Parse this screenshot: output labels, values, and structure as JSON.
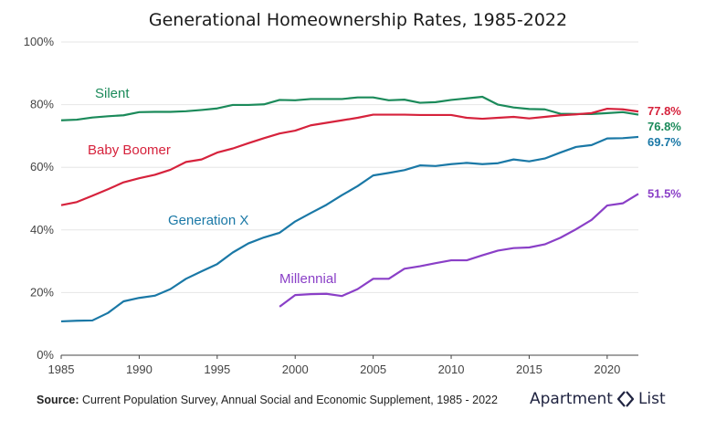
{
  "chart_data": {
    "type": "line",
    "title": "Generational Homeownership Rates, 1985-2022",
    "xlabel": "",
    "ylabel": "",
    "xlim": [
      1985,
      2022
    ],
    "ylim": [
      0,
      100
    ],
    "x_ticks": [
      1985,
      1990,
      1995,
      2000,
      2005,
      2010,
      2015,
      2020
    ],
    "x_tick_labels": [
      "1985",
      "1990",
      "1995",
      "2000",
      "2005",
      "2010",
      "2015",
      "2020"
    ],
    "y_ticks": [
      0,
      20,
      40,
      60,
      80,
      100
    ],
    "y_tick_labels": [
      "0%",
      "20%",
      "40%",
      "60%",
      "80%",
      "100%"
    ],
    "grid": "horizontal",
    "series": [
      {
        "name": "Silent",
        "color": "#1b8a5a",
        "end_label": "76.8%",
        "x": [
          1985,
          1986,
          1987,
          1988,
          1989,
          1990,
          1991,
          1992,
          1993,
          1994,
          1995,
          1996,
          1997,
          1998,
          1999,
          2000,
          2001,
          2002,
          2003,
          2004,
          2005,
          2006,
          2007,
          2008,
          2009,
          2010,
          2011,
          2012,
          2013,
          2014,
          2015,
          2016,
          2017,
          2018,
          2019,
          2020,
          2021,
          2022
        ],
        "values": [
          75.0,
          75.2,
          75.9,
          76.3,
          76.6,
          77.6,
          77.7,
          77.7,
          77.9,
          78.3,
          78.8,
          79.9,
          79.9,
          80.1,
          81.5,
          81.4,
          81.8,
          81.8,
          81.8,
          82.3,
          82.3,
          81.4,
          81.6,
          80.6,
          80.8,
          81.5,
          82.0,
          82.5,
          80.0,
          79.1,
          78.6,
          78.5,
          77.1,
          77.0,
          77.0,
          77.3,
          77.6,
          76.8
        ]
      },
      {
        "name": "Baby Boomer",
        "color": "#d6223c",
        "end_label": "77.8%",
        "x": [
          1985,
          1986,
          1987,
          1988,
          1989,
          1990,
          1991,
          1992,
          1993,
          1994,
          1995,
          1996,
          1997,
          1998,
          1999,
          2000,
          2001,
          2002,
          2003,
          2004,
          2005,
          2006,
          2007,
          2008,
          2009,
          2010,
          2011,
          2012,
          2013,
          2014,
          2015,
          2016,
          2017,
          2018,
          2019,
          2020,
          2021,
          2022
        ],
        "values": [
          47.9,
          48.9,
          50.9,
          53.0,
          55.2,
          56.5,
          57.6,
          59.2,
          61.7,
          62.5,
          64.7,
          66.0,
          67.7,
          69.3,
          70.8,
          71.7,
          73.4,
          74.2,
          75.0,
          75.8,
          76.8,
          76.8,
          76.8,
          76.7,
          76.7,
          76.7,
          75.8,
          75.5,
          75.8,
          76.1,
          75.6,
          76.1,
          76.6,
          76.9,
          77.3,
          78.7,
          78.5,
          77.8
        ]
      },
      {
        "name": "Generation X",
        "color": "#1a78a6",
        "end_label": "69.7%",
        "x": [
          1985,
          1986,
          1987,
          1988,
          1989,
          1990,
          1991,
          1992,
          1993,
          1994,
          1995,
          1996,
          1997,
          1998,
          1999,
          2000,
          2001,
          2002,
          2003,
          2004,
          2005,
          2006,
          2007,
          2008,
          2009,
          2010,
          2011,
          2012,
          2013,
          2014,
          2015,
          2016,
          2017,
          2018,
          2019,
          2020,
          2021,
          2022
        ],
        "values": [
          10.8,
          11.0,
          11.1,
          13.5,
          17.2,
          18.3,
          19.0,
          21.1,
          24.4,
          26.8,
          29.1,
          32.8,
          35.7,
          37.6,
          39.1,
          42.7,
          45.4,
          48.0,
          51.1,
          54.0,
          57.4,
          58.2,
          59.1,
          60.6,
          60.4,
          61.0,
          61.4,
          61.0,
          61.3,
          62.5,
          61.9,
          62.8,
          64.7,
          66.5,
          67.1,
          69.2,
          69.3,
          69.7
        ]
      },
      {
        "name": "Millennial",
        "color": "#8a3fc7",
        "end_label": "51.5%",
        "x": [
          1999,
          2000,
          2001,
          2002,
          2003,
          2004,
          2005,
          2006,
          2007,
          2008,
          2009,
          2010,
          2011,
          2012,
          2013,
          2014,
          2015,
          2016,
          2017,
          2018,
          2019,
          2020,
          2021,
          2022
        ],
        "values": [
          15.5,
          19.2,
          19.5,
          19.6,
          18.9,
          21.1,
          24.4,
          24.4,
          27.6,
          28.4,
          29.4,
          30.3,
          30.3,
          31.9,
          33.4,
          34.2,
          34.4,
          35.4,
          37.5,
          40.2,
          43.2,
          47.8,
          48.5,
          51.5
        ]
      }
    ]
  },
  "footer": {
    "source_label": "Source:",
    "source_text": " Current Population Survey, Annual Social and Economic Supplement, 1985 - 2022",
    "brand_left": "Apartment",
    "brand_right": "List"
  }
}
